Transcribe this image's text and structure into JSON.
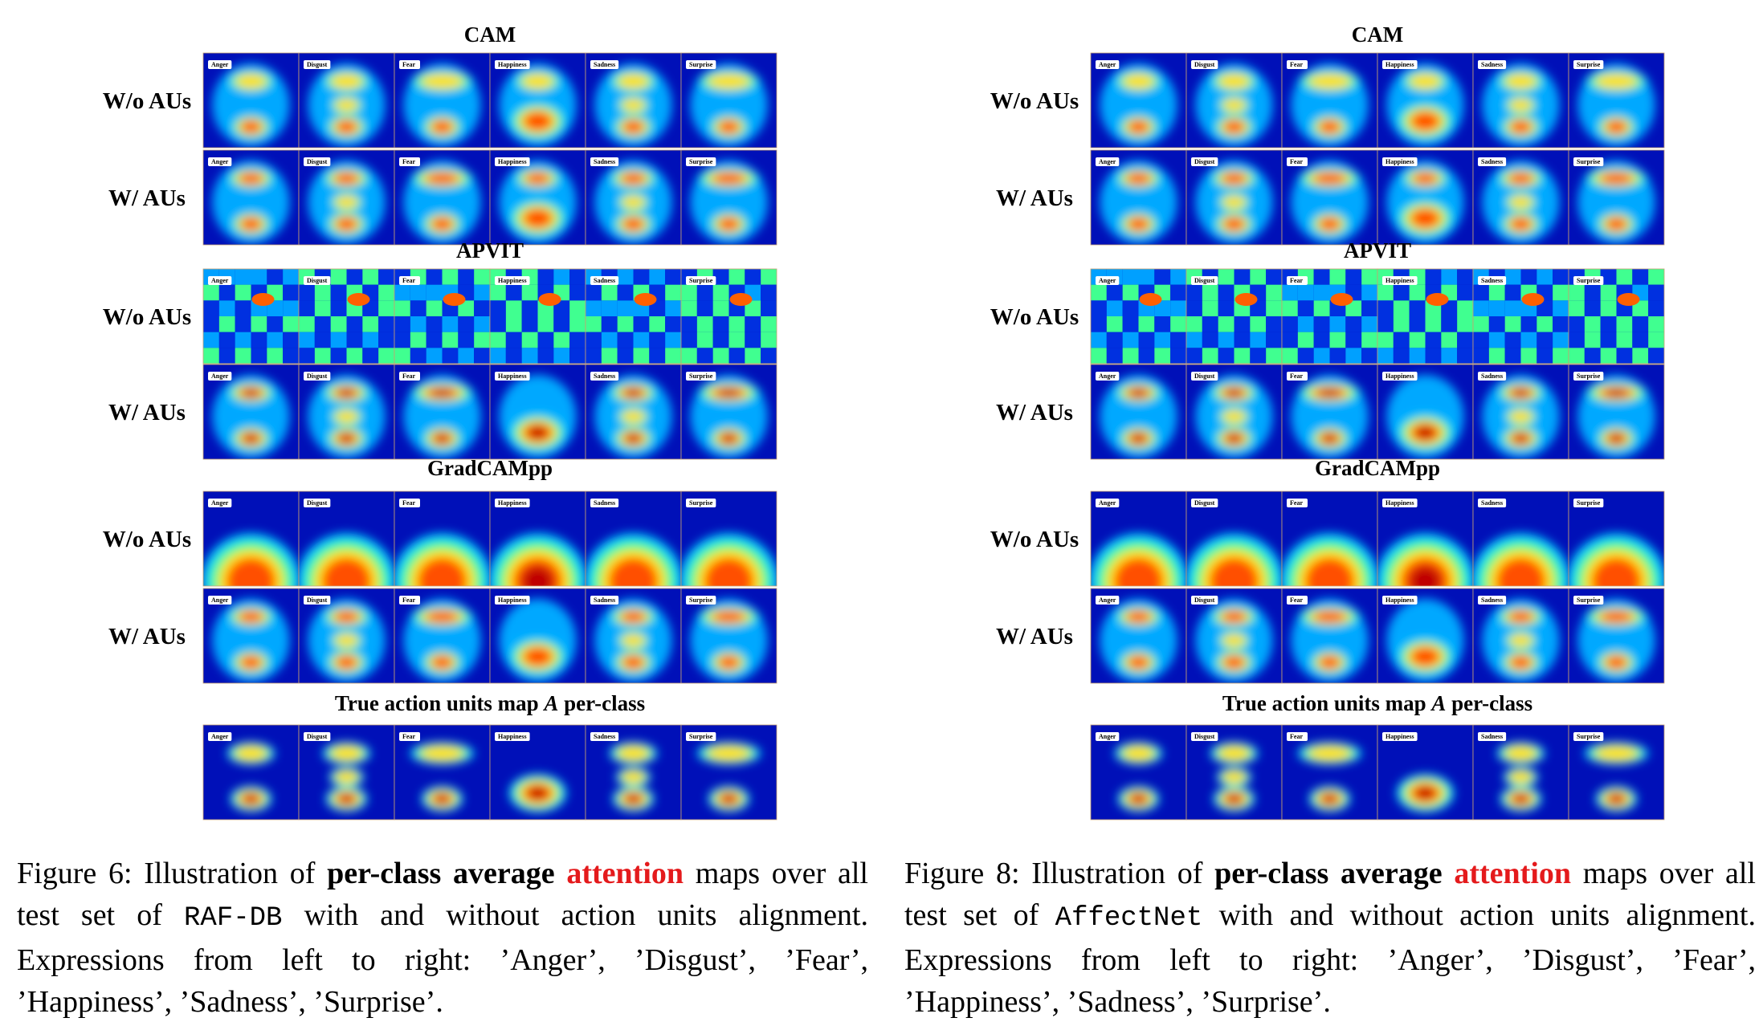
{
  "figures": [
    {
      "sections": [
        {
          "title": "CAM",
          "rows": [
            "W/o AUs",
            "W/ AUs"
          ]
        },
        {
          "title": "APVIT",
          "rows": [
            "W/o AUs",
            "W/ AUs"
          ]
        },
        {
          "title": "GradCAMpp",
          "rows": [
            "W/o AUs",
            "W/ AUs"
          ]
        },
        {
          "title": "True action units map",
          "title_var": "A",
          "title_post": "per-class",
          "rows": [
            null
          ]
        }
      ],
      "classes": [
        "Anger",
        "Disgust",
        "Fear",
        "Happiness",
        "Sadness",
        "Surprise"
      ],
      "caption": [
        "Figure 6: Illustration of ",
        "per-class average ",
        "attention",
        " maps over all test set of ",
        "RAF-DB",
        " with and without action units alignment. Expressions from left to right: ’Anger’, ’Disgust’, ’Fear’, ’Happiness’, ’Sadness’, ’Surprise’."
      ]
    },
    {
      "sections": [
        {
          "title": "CAM",
          "rows": [
            "W/o AUs",
            "W/ AUs"
          ]
        },
        {
          "title": "APVIT",
          "rows": [
            "W/o AUs",
            "W/ AUs"
          ]
        },
        {
          "title": "GradCAMpp",
          "rows": [
            "W/o AUs",
            "W/ AUs"
          ]
        },
        {
          "title": "True action units map",
          "title_var": "A",
          "title_post": "per-class",
          "rows": [
            null
          ]
        }
      ],
      "classes": [
        "Anger",
        "Disgust",
        "Fear",
        "Happiness",
        "Sadness",
        "Surprise"
      ],
      "caption": [
        "Figure 8: Illustration of ",
        "per-class average ",
        "attention",
        " maps over all test set of ",
        "AffectNet",
        " with and without action units alignment. Expressions from left to right: ’Anger’, ’Disgust’, ’Fear’, ’Happiness’, ’Sadness’, ’Surprise’."
      ]
    }
  ]
}
